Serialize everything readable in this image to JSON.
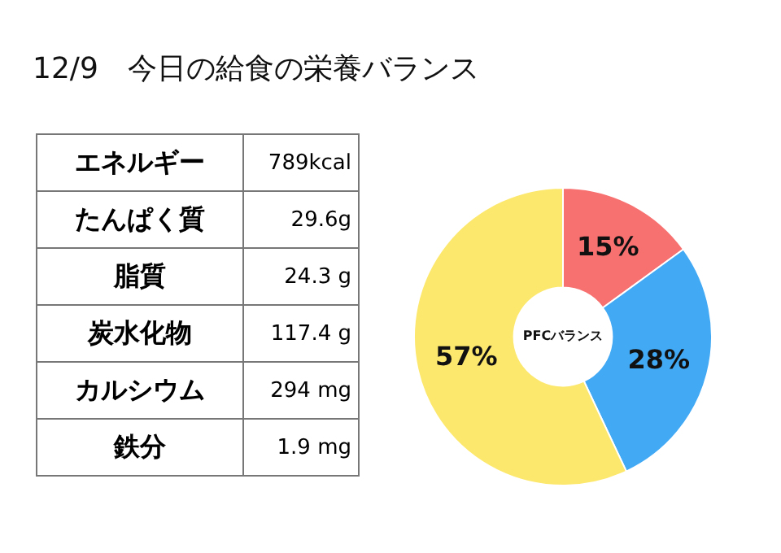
{
  "chart_data": [
    {
      "type": "other",
      "title": "12/9　今日の給食の栄養バランス",
      "categories": [
        "エネルギー",
        "たんぱく質",
        "脂質",
        "炭水化物",
        "カルシウム",
        "鉄分"
      ],
      "value_labels": [
        "789kcal",
        "29.6g",
        "24.3 g",
        "117.4 g",
        "294 mg",
        "1.9 mg"
      ]
    },
    {
      "type": "donut",
      "categories": [
        null,
        null,
        null
      ],
      "values": [
        15,
        28,
        57
      ],
      "colors": [
        "#f87171",
        "#42a9f5",
        "#fde86e"
      ],
      "value_labels": [
        "15%",
        "28%",
        "57%"
      ],
      "annotations": [
        "PFCバランス"
      ],
      "legend": false
    }
  ]
}
